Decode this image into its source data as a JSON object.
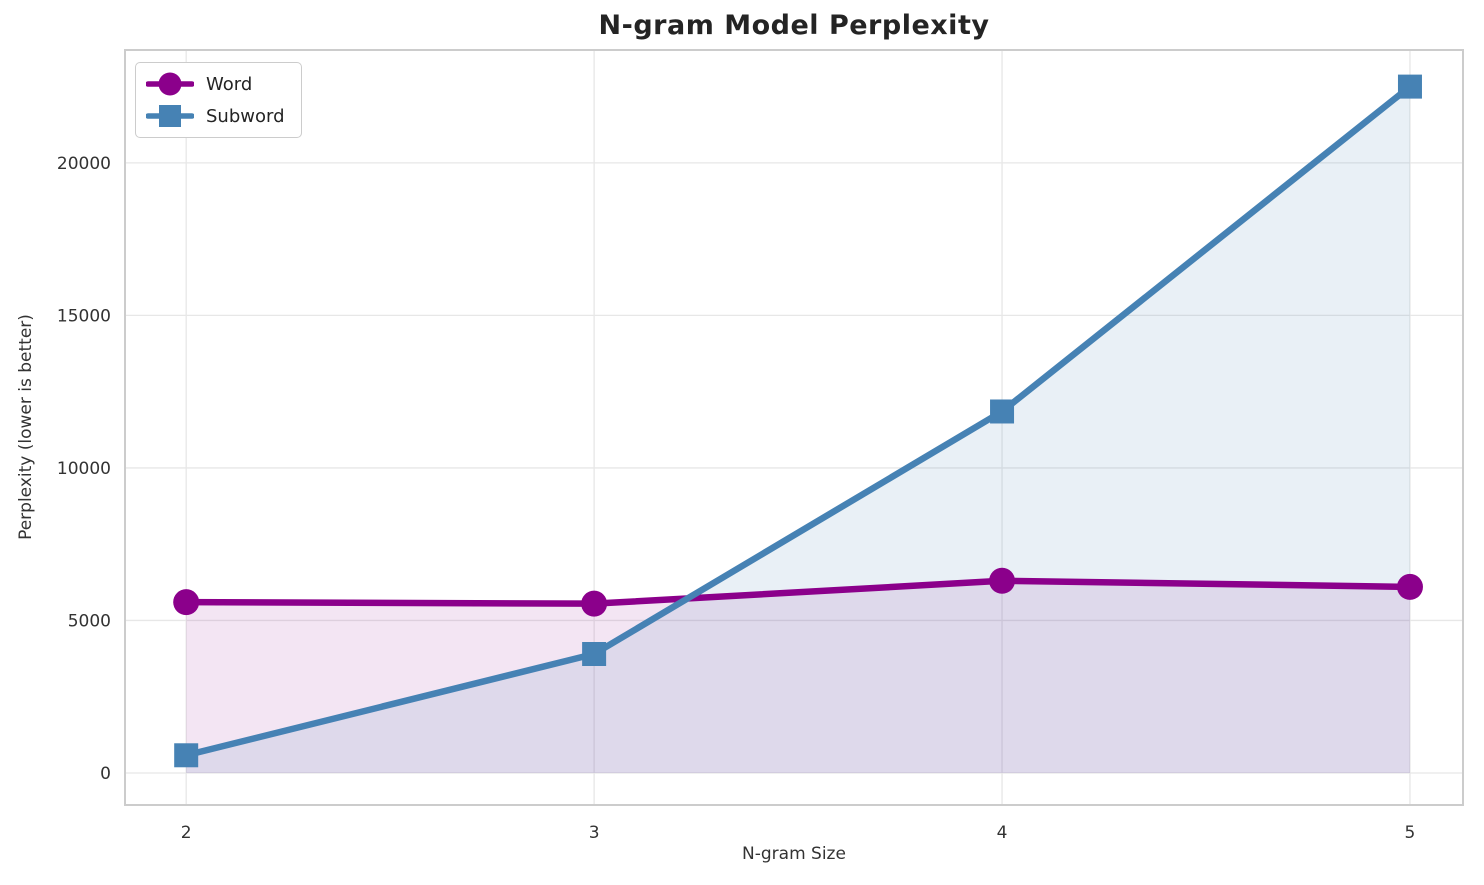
{
  "chart_data": {
    "type": "line",
    "title": "N-gram Model Perplexity",
    "xlabel": "N-gram Size",
    "ylabel": "Perplexity (lower is better)",
    "x": [
      2,
      3,
      4,
      5
    ],
    "series": [
      {
        "name": "Word",
        "values": [
          5600,
          5550,
          6300,
          6100
        ],
        "color": "#8B008B",
        "marker": "circle",
        "fill_alpha": 0.1
      },
      {
        "name": "Subword",
        "values": [
          580,
          3900,
          11850,
          22500
        ],
        "color": "#4682B4",
        "marker": "square",
        "fill_alpha": 0.12
      }
    ],
    "xticks": [
      "2",
      "3",
      "4",
      "5"
    ],
    "xtick_values": [
      2,
      3,
      4,
      5
    ],
    "yticks": [
      "0",
      "5000",
      "10000",
      "15000",
      "20000"
    ],
    "ytick_values": [
      0,
      5000,
      10000,
      15000,
      20000
    ],
    "xlim": [
      1.85,
      5.13
    ],
    "ylim": [
      -1050,
      23700
    ],
    "grid": true,
    "area_fill_baseline": 0,
    "legend_position": "upper left",
    "colors": {
      "grid": "#e7e7e7",
      "spine": "#cccccc",
      "tick_text": "#333333",
      "title_text": "#242424",
      "background": "#ffffff"
    }
  }
}
